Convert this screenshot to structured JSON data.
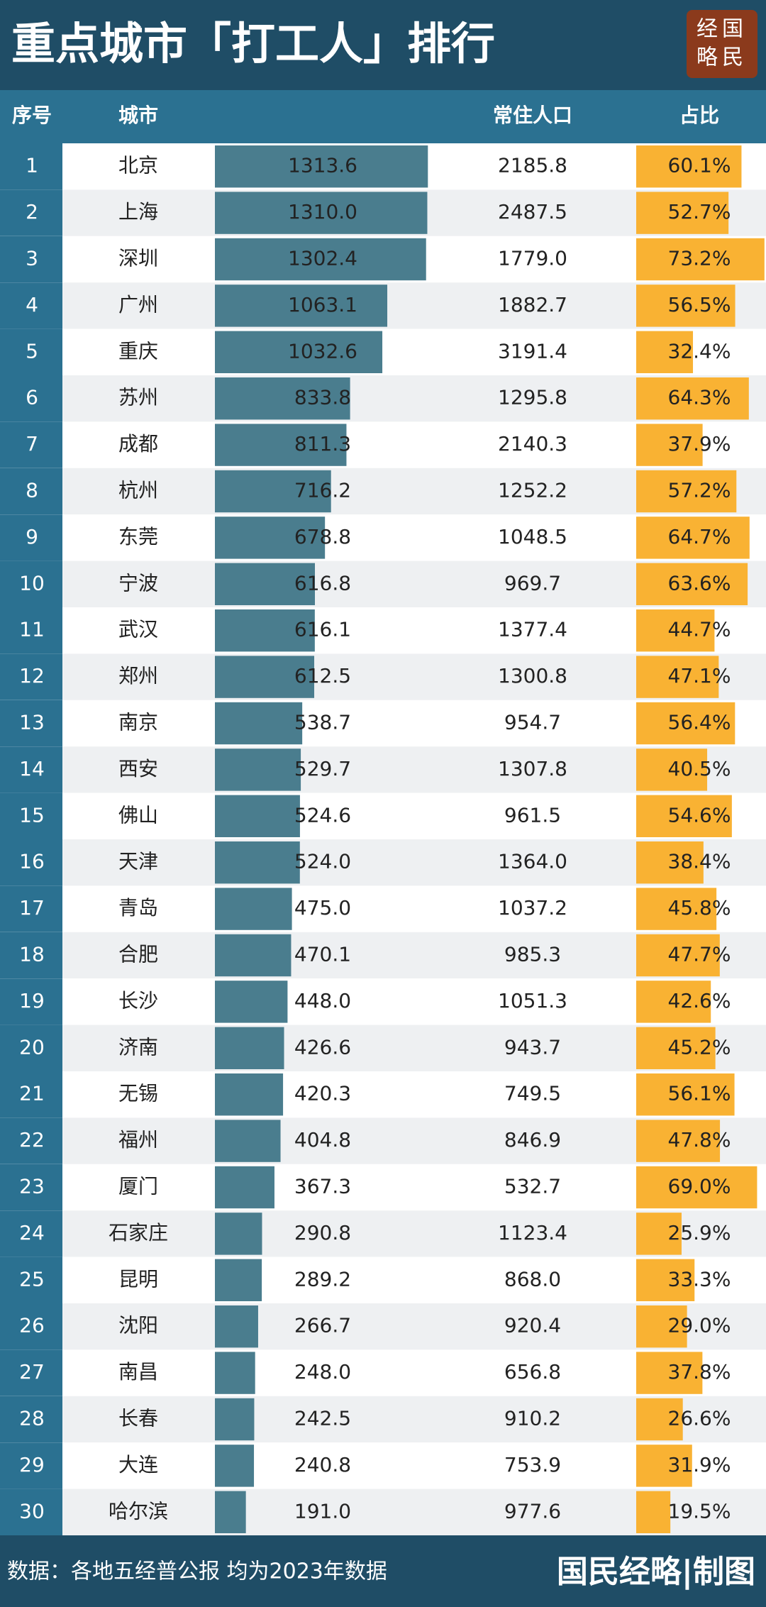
{
  "header": {
    "title": "重点城市「打工人」排行",
    "logo": [
      "经国",
      "略民"
    ]
  },
  "columns": {
    "rank": "序号",
    "city": "城市",
    "population": "常住人口",
    "share": "占比"
  },
  "rows": [
    {
      "rank": 1,
      "city": "北京",
      "workers": 1313.6,
      "workers_label": "1313.6",
      "population": "2185.8",
      "share": 60.1,
      "share_label": "60.1%"
    },
    {
      "rank": 2,
      "city": "上海",
      "workers": 1310,
      "workers_label": "1310.0",
      "population": "2487.5",
      "share": 52.7,
      "share_label": "52.7%"
    },
    {
      "rank": 3,
      "city": "深圳",
      "workers": 1302.4,
      "workers_label": "1302.4",
      "population": "1779.0",
      "share": 73.2,
      "share_label": "73.2%"
    },
    {
      "rank": 4,
      "city": "广州",
      "workers": 1063.1,
      "workers_label": "1063.1",
      "population": "1882.7",
      "share": 56.5,
      "share_label": "56.5%"
    },
    {
      "rank": 5,
      "city": "重庆",
      "workers": 1032.6,
      "workers_label": "1032.6",
      "population": "3191.4",
      "share": 32.4,
      "share_label": "32.4%"
    },
    {
      "rank": 6,
      "city": "苏州",
      "workers": 833.8,
      "workers_label": "833.8",
      "population": "1295.8",
      "share": 64.3,
      "share_label": "64.3%"
    },
    {
      "rank": 7,
      "city": "成都",
      "workers": 811.3,
      "workers_label": "811.3",
      "population": "2140.3",
      "share": 37.9,
      "share_label": "37.9%"
    },
    {
      "rank": 8,
      "city": "杭州",
      "workers": 716.2,
      "workers_label": "716.2",
      "population": "1252.2",
      "share": 57.2,
      "share_label": "57.2%"
    },
    {
      "rank": 9,
      "city": "东莞",
      "workers": 678.8,
      "workers_label": "678.8",
      "population": "1048.5",
      "share": 64.7,
      "share_label": "64.7%"
    },
    {
      "rank": 10,
      "city": "宁波",
      "workers": 616.8,
      "workers_label": "616.8",
      "population": "969.7",
      "share": 63.6,
      "share_label": "63.6%"
    },
    {
      "rank": 11,
      "city": "武汉",
      "workers": 616.1,
      "workers_label": "616.1",
      "population": "1377.4",
      "share": 44.7,
      "share_label": "44.7%"
    },
    {
      "rank": 12,
      "city": "郑州",
      "workers": 612.5,
      "workers_label": "612.5",
      "population": "1300.8",
      "share": 47.1,
      "share_label": "47.1%"
    },
    {
      "rank": 13,
      "city": "南京",
      "workers": 538.7,
      "workers_label": "538.7",
      "population": "954.7",
      "share": 56.4,
      "share_label": "56.4%"
    },
    {
      "rank": 14,
      "city": "西安",
      "workers": 529.7,
      "workers_label": "529.7",
      "population": "1307.8",
      "share": 40.5,
      "share_label": "40.5%"
    },
    {
      "rank": 15,
      "city": "佛山",
      "workers": 524.6,
      "workers_label": "524.6",
      "population": "961.5",
      "share": 54.6,
      "share_label": "54.6%"
    },
    {
      "rank": 16,
      "city": "天津",
      "workers": 524,
      "workers_label": "524.0",
      "population": "1364.0",
      "share": 38.4,
      "share_label": "38.4%"
    },
    {
      "rank": 17,
      "city": "青岛",
      "workers": 475,
      "workers_label": "475.0",
      "population": "1037.2",
      "share": 45.8,
      "share_label": "45.8%"
    },
    {
      "rank": 18,
      "city": "合肥",
      "workers": 470.1,
      "workers_label": "470.1",
      "population": "985.3",
      "share": 47.7,
      "share_label": "47.7%"
    },
    {
      "rank": 19,
      "city": "长沙",
      "workers": 448,
      "workers_label": "448.0",
      "population": "1051.3",
      "share": 42.6,
      "share_label": "42.6%"
    },
    {
      "rank": 20,
      "city": "济南",
      "workers": 426.6,
      "workers_label": "426.6",
      "population": "943.7",
      "share": 45.2,
      "share_label": "45.2%"
    },
    {
      "rank": 21,
      "city": "无锡",
      "workers": 420.3,
      "workers_label": "420.3",
      "population": "749.5",
      "share": 56.1,
      "share_label": "56.1%"
    },
    {
      "rank": 22,
      "city": "福州",
      "workers": 404.8,
      "workers_label": "404.8",
      "population": "846.9",
      "share": 47.8,
      "share_label": "47.8%"
    },
    {
      "rank": 23,
      "city": "厦门",
      "workers": 367.3,
      "workers_label": "367.3",
      "population": "532.7",
      "share": 69,
      "share_label": "69.0%"
    },
    {
      "rank": 24,
      "city": "石家庄",
      "workers": 290.8,
      "workers_label": "290.8",
      "population": "1123.4",
      "share": 25.9,
      "share_label": "25.9%"
    },
    {
      "rank": 25,
      "city": "昆明",
      "workers": 289.2,
      "workers_label": "289.2",
      "population": "868.0",
      "share": 33.3,
      "share_label": "33.3%"
    },
    {
      "rank": 26,
      "city": "沈阳",
      "workers": 266.7,
      "workers_label": "266.7",
      "population": "920.4",
      "share": 29,
      "share_label": "29.0%"
    },
    {
      "rank": 27,
      "city": "南昌",
      "workers": 248,
      "workers_label": "248.0",
      "population": "656.8",
      "share": 37.8,
      "share_label": "37.8%"
    },
    {
      "rank": 28,
      "city": "长春",
      "workers": 242.5,
      "workers_label": "242.5",
      "population": "910.2",
      "share": 26.6,
      "share_label": "26.6%"
    },
    {
      "rank": 29,
      "city": "大连",
      "workers": 240.8,
      "workers_label": "240.8",
      "population": "753.9",
      "share": 31.9,
      "share_label": "31.9%"
    },
    {
      "rank": 30,
      "city": "哈尔滨",
      "workers": 191,
      "workers_label": "191.0",
      "population": "977.6",
      "share": 19.5,
      "share_label": "19.5%"
    }
  ],
  "footer": {
    "source": "数据：各地五经普公报 均为2023年数据",
    "credit": "国民经略|制图"
  }
}
